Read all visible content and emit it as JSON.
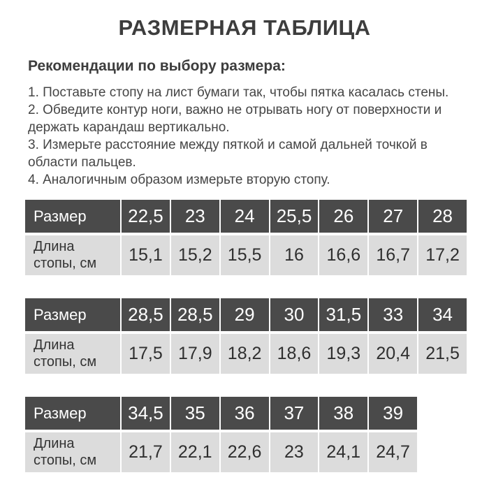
{
  "page": {
    "title": "РАЗМЕРНАЯ ТАБЛИЦА",
    "recommendations_heading": "Рекомендации по выбору размера:",
    "instructions": [
      "1. Поставьте стопу на лист бумаги так, чтобы пятка касалась стены.",
      "2. Обведите контур ноги, важно не отрывать ногу от поверхности и держать карандаш вертикально.",
      "3. Измерьте расстояние между пяткой и самой дальней точкой в области пальцев.",
      "4. Аналогичным образом измерьте вторую стопу."
    ]
  },
  "labels": {
    "size": "Размер",
    "foot_length": "Длина стопы, см"
  },
  "tables": [
    {
      "sizes": [
        "22,5",
        "23",
        "24",
        "25,5",
        "26",
        "27",
        "28"
      ],
      "lengths": [
        "15,1",
        "15,2",
        "15,5",
        "16",
        "16,6",
        "16,7",
        "17,2"
      ]
    },
    {
      "sizes": [
        "28,5",
        "28,5",
        "29",
        "30",
        "31,5",
        "33",
        "34"
      ],
      "lengths": [
        "17,5",
        "17,9",
        "18,2",
        "18,6",
        "19,3",
        "20,4",
        "21,5"
      ]
    },
    {
      "sizes": [
        "34,5",
        "35",
        "36",
        "37",
        "38",
        "39"
      ],
      "lengths": [
        "21,7",
        "22,1",
        "22,6",
        "23",
        "24,1",
        "24,7"
      ]
    }
  ],
  "colors": {
    "header_bg": "#4a4a4a",
    "body_bg": "#dcdcdc",
    "text": "#3f3f3f",
    "page_bg": "#ffffff"
  }
}
